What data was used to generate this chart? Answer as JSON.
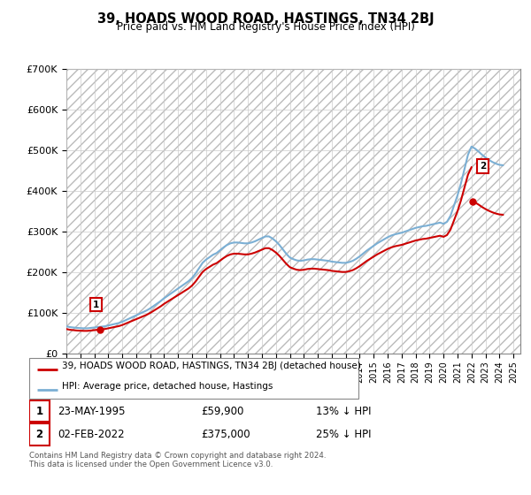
{
  "title": "39, HOADS WOOD ROAD, HASTINGS, TN34 2BJ",
  "subtitle": "Price paid vs. HM Land Registry's House Price Index (HPI)",
  "ylabel_ticks": [
    "£0",
    "£100K",
    "£200K",
    "£300K",
    "£400K",
    "£500K",
    "£600K",
    "£700K"
  ],
  "ylim": [
    0,
    700000
  ],
  "xlim_start": 1993.0,
  "xlim_end": 2025.5,
  "hpi_color": "#7bafd4",
  "price_color": "#cc0000",
  "sale1_date": 1995.39,
  "sale1_price": 59900,
  "sale2_date": 2022.085,
  "sale2_price": 375000,
  "legend_line1": "39, HOADS WOOD ROAD, HASTINGS, TN34 2BJ (detached house)",
  "legend_line2": "HPI: Average price, detached house, Hastings",
  "table1_date": "23-MAY-1995",
  "table1_price": "£59,900",
  "table1_hpi": "13% ↓ HPI",
  "table2_date": "02-FEB-2022",
  "table2_price": "£375,000",
  "table2_hpi": "25% ↓ HPI",
  "footnote": "Contains HM Land Registry data © Crown copyright and database right 2024.\nThis data is licensed under the Open Government Licence v3.0.",
  "hpi_data_x": [
    1993.0,
    1993.25,
    1993.5,
    1993.75,
    1994.0,
    1994.25,
    1994.5,
    1994.75,
    1995.0,
    1995.25,
    1995.5,
    1995.75,
    1996.0,
    1996.25,
    1996.5,
    1996.75,
    1997.0,
    1997.25,
    1997.5,
    1997.75,
    1998.0,
    1998.25,
    1998.5,
    1998.75,
    1999.0,
    1999.25,
    1999.5,
    1999.75,
    2000.0,
    2000.25,
    2000.5,
    2000.75,
    2001.0,
    2001.25,
    2001.5,
    2001.75,
    2002.0,
    2002.25,
    2002.5,
    2002.75,
    2003.0,
    2003.25,
    2003.5,
    2003.75,
    2004.0,
    2004.25,
    2004.5,
    2004.75,
    2005.0,
    2005.25,
    2005.5,
    2005.75,
    2006.0,
    2006.25,
    2006.5,
    2006.75,
    2007.0,
    2007.25,
    2007.5,
    2007.75,
    2008.0,
    2008.25,
    2008.5,
    2008.75,
    2009.0,
    2009.25,
    2009.5,
    2009.75,
    2010.0,
    2010.25,
    2010.5,
    2010.75,
    2011.0,
    2011.25,
    2011.5,
    2011.75,
    2012.0,
    2012.25,
    2012.5,
    2012.75,
    2013.0,
    2013.25,
    2013.5,
    2013.75,
    2014.0,
    2014.25,
    2014.5,
    2014.75,
    2015.0,
    2015.25,
    2015.5,
    2015.75,
    2016.0,
    2016.25,
    2016.5,
    2016.75,
    2017.0,
    2017.25,
    2017.5,
    2017.75,
    2018.0,
    2018.25,
    2018.5,
    2018.75,
    2019.0,
    2019.25,
    2019.5,
    2019.75,
    2020.0,
    2020.25,
    2020.5,
    2020.75,
    2021.0,
    2021.25,
    2021.5,
    2021.75,
    2022.0,
    2022.25,
    2022.5,
    2022.75,
    2023.0,
    2023.25,
    2023.5,
    2023.75,
    2024.0,
    2024.25
  ],
  "hpi_data_y": [
    68000,
    66000,
    65000,
    64000,
    63500,
    63000,
    63000,
    64000,
    65000,
    66000,
    67000,
    68000,
    70000,
    72000,
    74000,
    76000,
    79000,
    83000,
    87000,
    91000,
    95000,
    99000,
    103000,
    107000,
    112000,
    118000,
    124000,
    130000,
    137000,
    143000,
    149000,
    155000,
    161000,
    167000,
    173000,
    179000,
    187000,
    198000,
    211000,
    224000,
    232000,
    238000,
    244000,
    248000,
    255000,
    262000,
    268000,
    272000,
    274000,
    274000,
    273000,
    272000,
    272000,
    274000,
    277000,
    281000,
    285000,
    289000,
    289000,
    284000,
    277000,
    268000,
    257000,
    246000,
    237000,
    233000,
    230000,
    229000,
    230000,
    232000,
    233000,
    233000,
    232000,
    231000,
    230000,
    229000,
    227000,
    226000,
    225000,
    224000,
    224000,
    226000,
    229000,
    234000,
    240000,
    247000,
    254000,
    260000,
    266000,
    272000,
    277000,
    282000,
    287000,
    291000,
    294000,
    296000,
    298000,
    301000,
    304000,
    307000,
    310000,
    312000,
    314000,
    315000,
    317000,
    319000,
    321000,
    323000,
    320000,
    325000,
    340000,
    365000,
    390000,
    420000,
    455000,
    490000,
    510000,
    505000,
    498000,
    490000,
    483000,
    477000,
    472000,
    468000,
    465000,
    464000
  ]
}
